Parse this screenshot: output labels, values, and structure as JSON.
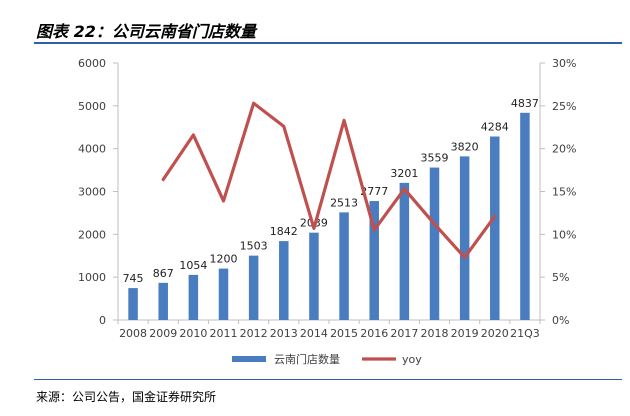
{
  "figure": {
    "title": "图表 22：公司云南省门店数量",
    "source": "来源：公司公告，国金证券研究所"
  },
  "chart_data": {
    "type": "bar",
    "categories": [
      "2008",
      "2009",
      "2010",
      "2011",
      "2012",
      "2013",
      "2014",
      "2015",
      "2016",
      "2017",
      "2018",
      "2019",
      "2020",
      "21Q3"
    ],
    "series": [
      {
        "name": "云南门店数量",
        "type": "bar",
        "axis": "left",
        "values": [
          745,
          867,
          1054,
          1200,
          1503,
          1842,
          2039,
          2513,
          2777,
          3201,
          3559,
          3820,
          4284,
          4837
        ],
        "labels": [
          "745",
          "867",
          "1054",
          "1200",
          "1503",
          "1842",
          "2039",
          "2513",
          "2777",
          "3201",
          "3559",
          "3820",
          "4284",
          "4837"
        ]
      },
      {
        "name": "yoy",
        "type": "line",
        "axis": "right",
        "values": [
          null,
          16.4,
          21.6,
          13.9,
          25.3,
          22.6,
          10.7,
          23.3,
          10.5,
          15.3,
          11.2,
          7.3,
          12.1,
          null
        ]
      }
    ],
    "y_left": {
      "ylim": [
        0,
        6000
      ],
      "ticks": [
        "0",
        "1000",
        "2000",
        "3000",
        "4000",
        "5000",
        "6000"
      ]
    },
    "y_right": {
      "ylim": [
        0,
        30
      ],
      "ticks": [
        "0%",
        "5%",
        "10%",
        "15%",
        "20%",
        "25%",
        "30%"
      ]
    },
    "legend": {
      "position": "bottom",
      "items": [
        "云南门店数量",
        "yoy"
      ]
    },
    "grid": false,
    "colors": {
      "bar": "#4a7dbf",
      "line": "#c0504d",
      "axis": "#bfbfbf",
      "tick_text": "#404040"
    }
  }
}
